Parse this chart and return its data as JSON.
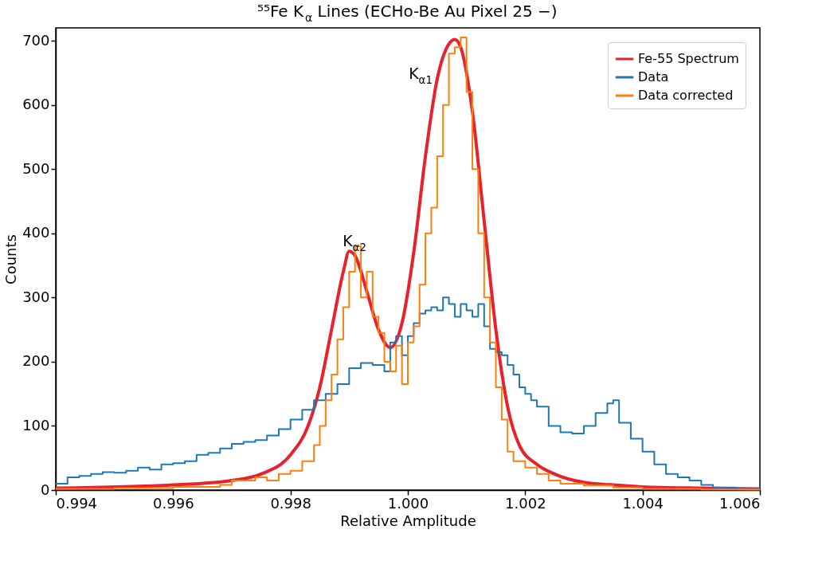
{
  "chart_data": {
    "type": "step",
    "title": "⁵⁵Fe K$_{α}$ Lines (ECHo-Be Au Pixel 25 −)",
    "xlabel": "Relative Amplitude",
    "ylabel": "Counts",
    "xlim": [
      0.994,
      1.006
    ],
    "ylim": [
      0,
      720
    ],
    "xticks": [
      {
        "value": 0.994,
        "label": "0.994"
      },
      {
        "value": 0.996,
        "label": "0.996"
      },
      {
        "value": 0.998,
        "label": "0.998"
      },
      {
        "value": 1.0,
        "label": "1.000"
      },
      {
        "value": 1.002,
        "label": "1.002"
      },
      {
        "value": 1.004,
        "label": "1.004"
      },
      {
        "value": 1.006,
        "label": "1.006"
      }
    ],
    "yticks": [
      0,
      100,
      200,
      300,
      400,
      500,
      600,
      700
    ],
    "grid": false,
    "legend": "top right",
    "annotations": [
      "K$_{α2}$",
      "K$_{α1}$"
    ],
    "series": [
      {
        "name": "Fe-55 Spectrum",
        "type": "line",
        "color": "#e8212b",
        "x": [
          0.994,
          0.996,
          0.997,
          0.9975,
          0.998,
          0.9983,
          0.9985,
          0.9987,
          0.9989,
          0.999,
          0.9991,
          0.9993,
          0.9995,
          0.9997,
          0.9999,
          1.0001,
          1.0003,
          1.0005,
          1.0007,
          1.0008,
          1.0009,
          1.0011,
          1.0013,
          1.0015,
          1.0017,
          1.0019,
          1.0022,
          1.0025,
          1.003,
          1.0035,
          1.004,
          1.005,
          1.006
        ],
        "values": [
          3,
          8,
          15,
          25,
          55,
          100,
          160,
          250,
          340,
          372,
          365,
          310,
          250,
          222,
          260,
          370,
          520,
          640,
          695,
          702,
          690,
          590,
          420,
          250,
          130,
          70,
          40,
          25,
          12,
          8,
          5,
          3,
          2
        ]
      },
      {
        "name": "Data",
        "color": "#1f77b4",
        "x": [
          0.994,
          0.9942,
          0.9944,
          0.9946,
          0.9948,
          0.995,
          0.9952,
          0.9954,
          0.9956,
          0.9958,
          0.996,
          0.9962,
          0.9964,
          0.9966,
          0.9968,
          0.997,
          0.9972,
          0.9974,
          0.9976,
          0.9978,
          0.998,
          0.9982,
          0.9984,
          0.9986,
          0.9988,
          0.999,
          0.9992,
          0.9994,
          0.9996,
          0.9997,
          0.9998,
          0.9999,
          1.0,
          1.0001,
          1.0002,
          1.0003,
          1.0004,
          1.0005,
          1.0006,
          1.0007,
          1.0008,
          1.0009,
          1.001,
          1.0011,
          1.0012,
          1.0013,
          1.0014,
          1.0015,
          1.0016,
          1.0017,
          1.0018,
          1.0019,
          1.002,
          1.0021,
          1.0022,
          1.0024,
          1.0026,
          1.0028,
          1.003,
          1.0032,
          1.0034,
          1.0035,
          1.0036,
          1.0038,
          1.004,
          1.0042,
          1.0044,
          1.0046,
          1.0048,
          1.005,
          1.0052,
          1.0056,
          1.006
        ],
        "values": [
          10,
          20,
          22,
          25,
          28,
          27,
          30,
          35,
          32,
          40,
          42,
          45,
          55,
          58,
          65,
          72,
          75,
          78,
          85,
          95,
          110,
          125,
          140,
          150,
          165,
          190,
          198,
          195,
          185,
          230,
          240,
          210,
          240,
          260,
          275,
          280,
          285,
          280,
          300,
          290,
          270,
          290,
          280,
          270,
          290,
          255,
          220,
          215,
          210,
          195,
          180,
          160,
          150,
          140,
          130,
          100,
          90,
          88,
          100,
          120,
          135,
          140,
          105,
          80,
          60,
          40,
          25,
          20,
          15,
          8,
          4,
          2,
          2
        ]
      },
      {
        "name": "Data corrected",
        "color": "#ff7f0e",
        "x": [
          0.994,
          0.995,
          0.996,
          0.9968,
          0.997,
          0.9974,
          0.9976,
          0.9978,
          0.998,
          0.9982,
          0.9984,
          0.9985,
          0.9986,
          0.9987,
          0.9988,
          0.9989,
          0.999,
          0.9991,
          0.9992,
          0.9993,
          0.9994,
          0.9995,
          0.9996,
          0.9997,
          0.9998,
          0.9999,
          1.0,
          1.0001,
          1.0002,
          1.0003,
          1.0004,
          1.0005,
          1.0006,
          1.0007,
          1.0008,
          1.0009,
          1.001,
          1.0011,
          1.0012,
          1.0013,
          1.0014,
          1.0015,
          1.0016,
          1.0017,
          1.0018,
          1.002,
          1.0022,
          1.0024,
          1.0026,
          1.003,
          1.0035,
          1.004,
          1.005,
          1.006
        ],
        "values": [
          2,
          3,
          5,
          8,
          15,
          20,
          15,
          25,
          30,
          45,
          70,
          100,
          140,
          180,
          235,
          285,
          340,
          380,
          300,
          340,
          270,
          245,
          200,
          185,
          225,
          165,
          230,
          255,
          320,
          400,
          440,
          520,
          600,
          680,
          690,
          705,
          620,
          500,
          400,
          300,
          230,
          160,
          110,
          60,
          45,
          35,
          25,
          15,
          10,
          7,
          4,
          2,
          1,
          1
        ]
      }
    ]
  }
}
